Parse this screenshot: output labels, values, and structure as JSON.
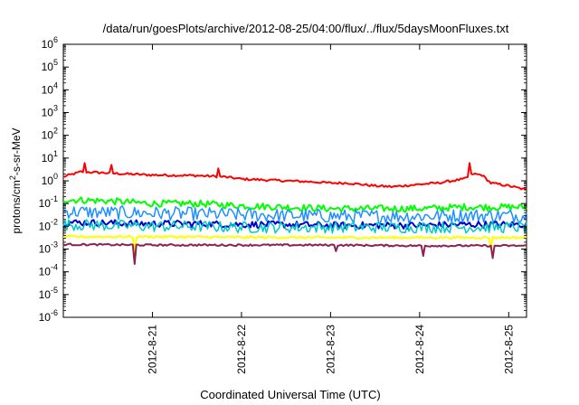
{
  "chart_data": {
    "type": "line",
    "title": "/data/run/goesPlots/archive/2012-08-25/04:00/flux/../flux/5daysMoonFluxes.txt",
    "xlabel": "Coordinated Universal Time (UTC)",
    "ylabel": {
      "prefix": "protons/cm",
      "sup": "2",
      "suffix": "-s-sr-MeV"
    },
    "scale": "log",
    "ylim_exp": [
      -6,
      6
    ],
    "y_tick_exponents": [
      -6,
      -5,
      -4,
      -3,
      -2,
      -1,
      0,
      1,
      2,
      3,
      4,
      5,
      6
    ],
    "xlim_days": [
      20.0,
      25.2
    ],
    "x_ticks": [
      {
        "label": "2012-8-21",
        "day": 21
      },
      {
        "label": "2012-8-22",
        "day": 22
      },
      {
        "label": "2012-8-23",
        "day": 23
      },
      {
        "label": "2012-8-24",
        "day": 24
      },
      {
        "label": "2012-8-25",
        "day": 25
      }
    ],
    "grid": false,
    "legend": "none",
    "series": [
      {
        "color": "#ff0000",
        "base_points": [
          [
            20.0,
            1.5
          ],
          [
            20.2,
            2.5
          ],
          [
            20.5,
            2.2
          ],
          [
            20.7,
            2.0
          ],
          [
            21.0,
            1.8
          ],
          [
            21.5,
            1.7
          ],
          [
            21.8,
            1.5
          ],
          [
            22.0,
            1.2
          ],
          [
            22.5,
            1.0
          ],
          [
            22.8,
            0.9
          ],
          [
            23.0,
            0.8
          ],
          [
            23.2,
            0.8
          ],
          [
            23.5,
            0.6
          ],
          [
            23.7,
            0.55
          ],
          [
            24.0,
            0.7
          ],
          [
            24.2,
            0.8
          ],
          [
            24.5,
            1.2
          ],
          [
            24.6,
            2.0
          ],
          [
            24.7,
            1.8
          ],
          [
            24.8,
            0.8
          ],
          [
            25.0,
            0.6
          ],
          [
            25.2,
            0.4
          ]
        ],
        "spikes": [
          [
            20.23,
            6.0
          ],
          [
            20.53,
            5.0
          ],
          [
            21.74,
            3.5
          ],
          [
            24.56,
            6.0
          ]
        ],
        "noise_dex": 0.05,
        "width": 2
      },
      {
        "color": "#00ff00",
        "base_points": [
          [
            20.0,
            0.15
          ],
          [
            20.5,
            0.13
          ],
          [
            21.0,
            0.1
          ],
          [
            21.5,
            0.1
          ],
          [
            22.0,
            0.08
          ],
          [
            22.5,
            0.07
          ],
          [
            23.0,
            0.06
          ],
          [
            23.5,
            0.06
          ],
          [
            24.0,
            0.06
          ],
          [
            24.5,
            0.07
          ],
          [
            25.0,
            0.07
          ],
          [
            25.2,
            0.07
          ]
        ],
        "spikes": [],
        "noise_dex": 0.15,
        "width": 2
      },
      {
        "color": "#1e90ff",
        "base_points": [
          [
            20.0,
            0.045
          ],
          [
            20.5,
            0.04
          ],
          [
            21.0,
            0.038
          ],
          [
            21.5,
            0.035
          ],
          [
            22.0,
            0.032
          ],
          [
            22.5,
            0.03
          ],
          [
            23.0,
            0.028
          ],
          [
            23.5,
            0.028
          ],
          [
            24.0,
            0.028
          ],
          [
            24.5,
            0.03
          ],
          [
            25.0,
            0.03
          ],
          [
            25.2,
            0.03
          ]
        ],
        "spikes": [],
        "noise_dex": 0.3,
        "width": 1.5
      },
      {
        "color": "#0000cd",
        "base_points": [
          [
            20.0,
            0.015
          ],
          [
            20.5,
            0.014
          ],
          [
            21.0,
            0.013
          ],
          [
            21.5,
            0.013
          ],
          [
            22.0,
            0.012
          ],
          [
            22.5,
            0.012
          ],
          [
            23.0,
            0.011
          ],
          [
            23.5,
            0.011
          ],
          [
            24.0,
            0.011
          ],
          [
            24.5,
            0.012
          ],
          [
            25.0,
            0.012
          ],
          [
            25.2,
            0.012
          ]
        ],
        "spikes": [],
        "noise_dex": 0.15,
        "width": 2
      },
      {
        "color": "#00c8c8",
        "base_points": [
          [
            20.0,
            0.012
          ],
          [
            20.5,
            0.011
          ],
          [
            21.0,
            0.01
          ],
          [
            21.5,
            0.01
          ],
          [
            22.0,
            0.009
          ],
          [
            22.5,
            0.009
          ],
          [
            23.0,
            0.009
          ],
          [
            23.5,
            0.009
          ],
          [
            24.0,
            0.009
          ],
          [
            24.5,
            0.009
          ],
          [
            25.0,
            0.009
          ],
          [
            25.2,
            0.009
          ]
        ],
        "spikes": [],
        "noise_dex": 0.25,
        "width": 1.5
      },
      {
        "color": "#ffff00",
        "base_points": [
          [
            20.0,
            0.0035
          ],
          [
            21.0,
            0.0035
          ],
          [
            22.0,
            0.0033
          ],
          [
            23.0,
            0.0032
          ],
          [
            24.0,
            0.0032
          ],
          [
            25.0,
            0.0032
          ],
          [
            25.2,
            0.0032
          ]
        ],
        "spikes": [
          [
            20.8,
            0.0006
          ],
          [
            24.8,
            0.001
          ]
        ],
        "noise_dex": 0.05,
        "width": 2
      },
      {
        "color": "#8b2252",
        "base_points": [
          [
            20.0,
            0.0016
          ],
          [
            21.0,
            0.0015
          ],
          [
            22.0,
            0.0015
          ],
          [
            23.0,
            0.0015
          ],
          [
            24.0,
            0.0014
          ],
          [
            25.0,
            0.0014
          ],
          [
            25.2,
            0.0014
          ]
        ],
        "spikes": [
          [
            20.81,
            0.00022
          ],
          [
            24.04,
            0.0005
          ],
          [
            24.82,
            0.0004
          ],
          [
            23.05,
            0.0008
          ]
        ],
        "noise_dex": 0.04,
        "width": 2
      }
    ]
  }
}
